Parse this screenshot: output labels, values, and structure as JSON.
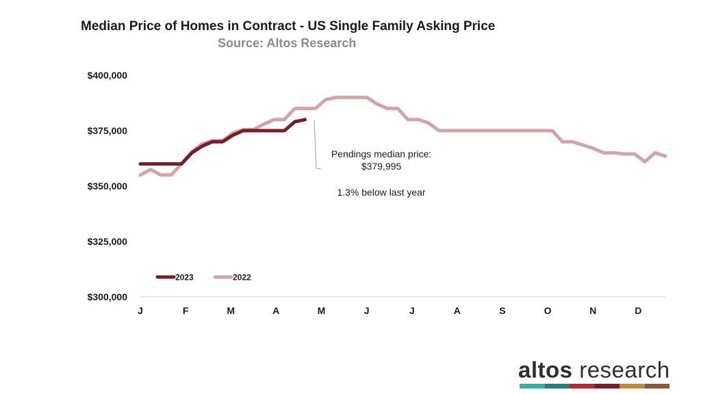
{
  "chart_data": {
    "type": "line",
    "title": "Median Price of Homes in Contract - US Single Family Asking Price",
    "subtitle": "Source: Altos Research",
    "categories": [
      "J",
      "F",
      "M",
      "A",
      "M",
      "J",
      "J",
      "A",
      "S",
      "O",
      "N",
      "D"
    ],
    "ylim": [
      300000,
      400000
    ],
    "yticks": [
      300000,
      325000,
      350000,
      375000,
      400000
    ],
    "ytick_labels": [
      "$300,000",
      "$325,000",
      "$350,000",
      "$375,000",
      "$400,000"
    ],
    "grid": false,
    "legend_position": "lower-left",
    "series": [
      {
        "name": "2023",
        "color": "#7b1c24",
        "x": [
          0,
          1,
          2,
          3,
          4,
          5,
          6,
          7,
          8,
          9,
          10,
          11,
          12,
          13,
          14,
          15,
          16
        ],
        "values": [
          360000,
          360000,
          360000,
          360000,
          360000,
          365000,
          368000,
          370000,
          370000,
          373000,
          375000,
          375000,
          375000,
          375000,
          375000,
          379000,
          379995
        ]
      },
      {
        "name": "2022",
        "color": "#d4a3a8",
        "x": [
          0,
          1,
          2,
          3,
          4,
          5,
          6,
          7,
          8,
          9,
          10,
          11,
          12,
          13,
          14,
          15,
          16,
          17,
          18,
          19,
          20,
          21,
          22,
          23,
          24,
          25,
          26,
          27,
          28,
          29,
          30,
          31,
          32,
          33,
          34,
          35,
          36,
          37,
          38,
          39,
          40,
          41,
          42,
          43,
          44,
          45,
          46,
          47,
          48,
          49,
          50,
          51
        ],
        "values": [
          355000,
          357500,
          355000,
          355000,
          360000,
          365500,
          369000,
          370500,
          370500,
          374000,
          375500,
          375500,
          378000,
          380000,
          380000,
          385000,
          385000,
          385000,
          389000,
          390000,
          390000,
          390000,
          390000,
          387000,
          385000,
          385000,
          380000,
          380000,
          378500,
          375000,
          375000,
          375000,
          375000,
          375000,
          375000,
          375000,
          375000,
          375000,
          375000,
          375000,
          375000,
          370000,
          370000,
          368500,
          367000,
          365000,
          365000,
          364500,
          364500,
          361000,
          365000,
          363500
        ]
      }
    ],
    "annotations": [
      {
        "text": "Pendings median price:"
      },
      {
        "text": "$379,995"
      },
      {
        "text": "1.3% below last year"
      }
    ]
  },
  "logo": {
    "word1": "altos",
    "word2": " research",
    "bar_colors": [
      "#2bb3a3",
      "#1f7f86",
      "#c0272d",
      "#7b1c24",
      "#c48a2e",
      "#8a5a36"
    ]
  }
}
